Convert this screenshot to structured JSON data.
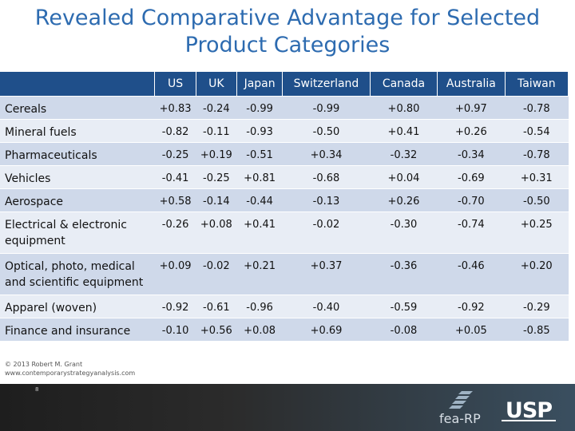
{
  "title_line1": "Revealed Comparative Advantage for Selected",
  "title_line2": "Product Categories",
  "columns": [
    "US",
    "UK",
    "Japan",
    "Switzerland",
    "Canada",
    "Australia",
    "Taiwan"
  ],
  "rows": [
    {
      "label": "Cereals",
      "values": [
        "+0.83",
        "-0.24",
        "-0.99",
        "-0.99",
        "+0.80",
        "+0.97",
        "-0.78"
      ]
    },
    {
      "label": "Mineral fuels",
      "values": [
        "-0.82",
        "-0.11",
        "-0.93",
        "-0.50",
        "+0.41",
        "+0.26",
        "-0.54"
      ]
    },
    {
      "label": "Pharmaceuticals",
      "values": [
        "-0.25",
        "+0.19",
        "-0.51",
        "+0.34",
        "-0.32",
        "-0.34",
        "-0.78"
      ]
    },
    {
      "label": "Vehicles",
      "values": [
        "-0.41",
        "-0.25",
        "+0.81",
        "-0.68",
        "+0.04",
        "-0.69",
        "+0.31"
      ]
    },
    {
      "label": "Aerospace",
      "values": [
        "+0.58",
        "-0.14",
        "-0.44",
        "-0.13",
        "+0.26",
        "-0.70",
        "-0.50"
      ]
    },
    {
      "label": "Electrical & electronic equipment",
      "values": [
        "-0.26",
        "+0.08",
        "+0.41",
        "-0.02",
        "-0.30",
        "-0.74",
        "+0.25"
      ]
    },
    {
      "label": "Optical, photo, medical and scientific equipment",
      "values": [
        "+0.09",
        "-0.02",
        "+0.21",
        "+0.37",
        "-0.36",
        "-0.46",
        "+0.20"
      ]
    },
    {
      "label": "Apparel (woven)",
      "values": [
        "-0.92",
        "-0.61",
        "-0.96",
        "-0.40",
        "-0.59",
        "-0.92",
        "-0.29"
      ]
    },
    {
      "label": "Finance and insurance",
      "values": [
        "-0.10",
        "+0.56",
        "+0.08",
        "+0.69",
        "-0.08",
        "+0.05",
        "-0.85"
      ]
    }
  ],
  "copyright_line1": "© 2013 Robert M. Grant",
  "copyright_line2": "www.contemporarystrategyanalysis.com",
  "page_number": "8",
  "logo_left_text": "fea-RP",
  "logo_right_text": "USP",
  "colors": {
    "title": "#2d6bb0",
    "header": "#1f4f8a",
    "row_odd": "#cfd9ea",
    "row_even": "#e8edf5"
  }
}
